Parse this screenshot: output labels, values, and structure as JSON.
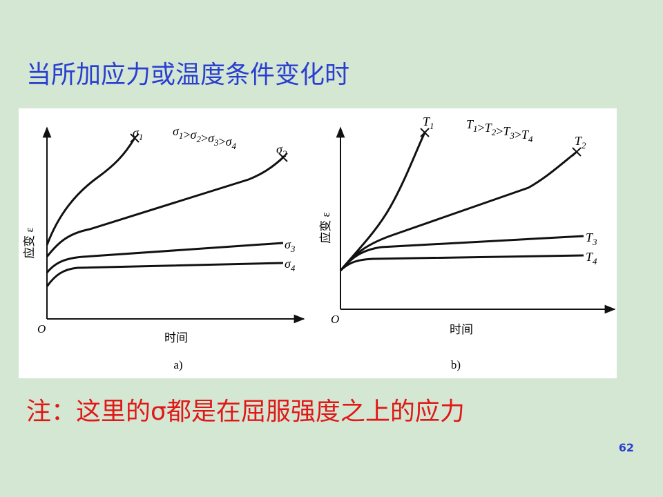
{
  "title": "当所加应力或温度条件变化时",
  "panels": [
    {
      "caption": "a)",
      "y_label": "应变 ε",
      "x_label": "时间",
      "origin": "O",
      "curves": [
        {
          "base": "σ",
          "sub": "1"
        },
        {
          "base": "σ",
          "sub": "2"
        },
        {
          "base": "σ",
          "sub": "3"
        },
        {
          "base": "σ",
          "sub": "4"
        }
      ],
      "separator": ">"
    },
    {
      "caption": "b)",
      "y_label": "应变 ε",
      "x_label": "时间",
      "origin": "O",
      "curves": [
        {
          "base": "T",
          "sub": "1"
        },
        {
          "base": "T",
          "sub": "2"
        },
        {
          "base": "T",
          "sub": "3"
        },
        {
          "base": "T",
          "sub": "4"
        }
      ],
      "separator": ">"
    }
  ],
  "note": "注：这里的σ都是在屈服强度之上的应力",
  "page_number": "62"
}
